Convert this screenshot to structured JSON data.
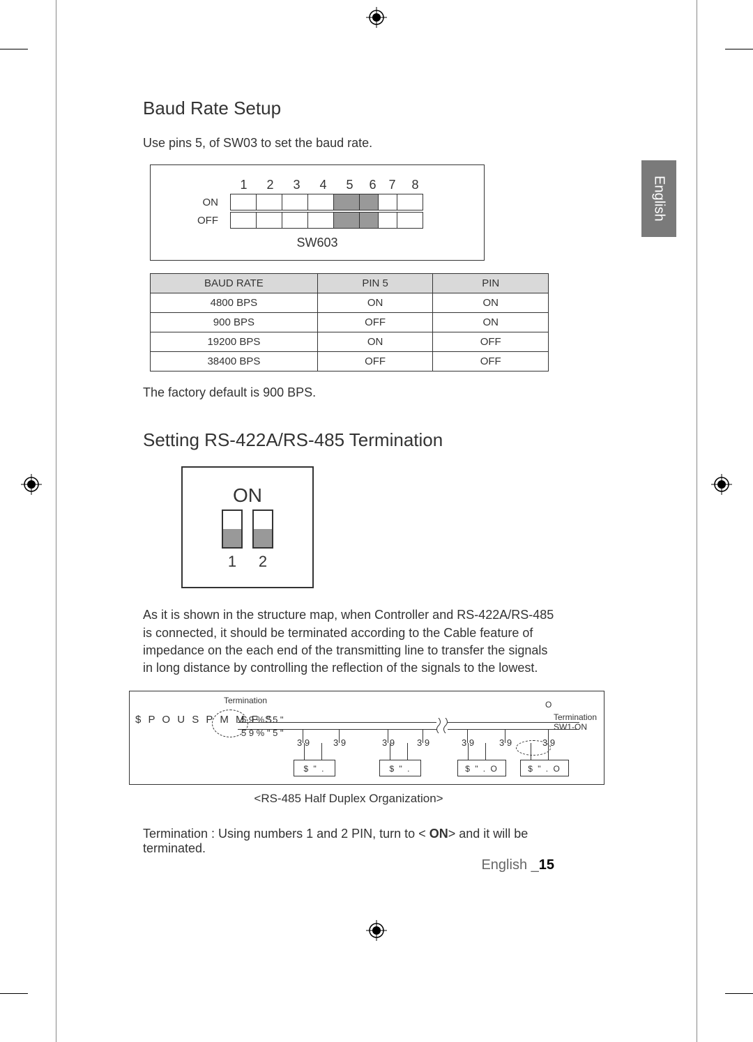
{
  "language_tab": "English",
  "section1": {
    "title": "Baud Rate Setup",
    "intro": "Use pins 5,  of SW03 to set the baud rate.",
    "sw_diagram": {
      "pin_numbers": [
        "1",
        "2",
        "3",
        "4",
        "5",
        "6",
        "7",
        "8"
      ],
      "row_labels": [
        "ON",
        "OFF"
      ],
      "caption": "SW603",
      "narrow_cols": [
        5,
        6
      ],
      "shaded_cols": [
        4,
        5
      ]
    },
    "table": {
      "headers": [
        "BAUD RATE",
        "PIN 5",
        "PIN"
      ],
      "rows": [
        [
          "4800 BPS",
          "ON",
          "ON"
        ],
        [
          "900 BPS",
          "OFF",
          "ON"
        ],
        [
          "19200 BPS",
          "ON",
          "OFF"
        ],
        [
          "38400 BPS",
          "OFF",
          "OFF"
        ]
      ]
    },
    "note": "The factory default is 900 BPS."
  },
  "section2": {
    "title": "Setting RS-422A/RS-485 Termination",
    "dip": {
      "on_label": "ON",
      "switch_positions": [
        "down",
        "down"
      ],
      "numbers": [
        "1",
        "2"
      ]
    },
    "paragraph": "As it is shown in the structure map, when Controller and RS-422A/RS-485 is connected, it should be terminated according to the Cable feature of impedance on the each end of the transmitting line to transfer the signals in long distance by controlling the reflection of the signals to the lowest.",
    "bus": {
      "controller": "$ P O U S P M M F S",
      "term_label_left": "Termination",
      "term_label_right_1": "Termination",
      "term_label_right_2": "SW1-ON",
      "bus_top": "5 9      % \" 5 \"",
      "bus_bot": "5 9      % \" 5 \"",
      "stub_label": "3 9",
      "cams": [
        "$ \" .",
        "$ \" .",
        "$ \" .   O",
        "$ \" .   O"
      ],
      "o_marks": "O"
    },
    "bus_caption": "<RS-485 Half Duplex Organization>",
    "term_line_pre": "Termination : Using numbers 1 and 2 PIN, turn to < ",
    "term_line_bold": "ON",
    "term_line_post": "> and it will be terminated."
  },
  "footer": {
    "lang": "English _",
    "page": "15"
  }
}
